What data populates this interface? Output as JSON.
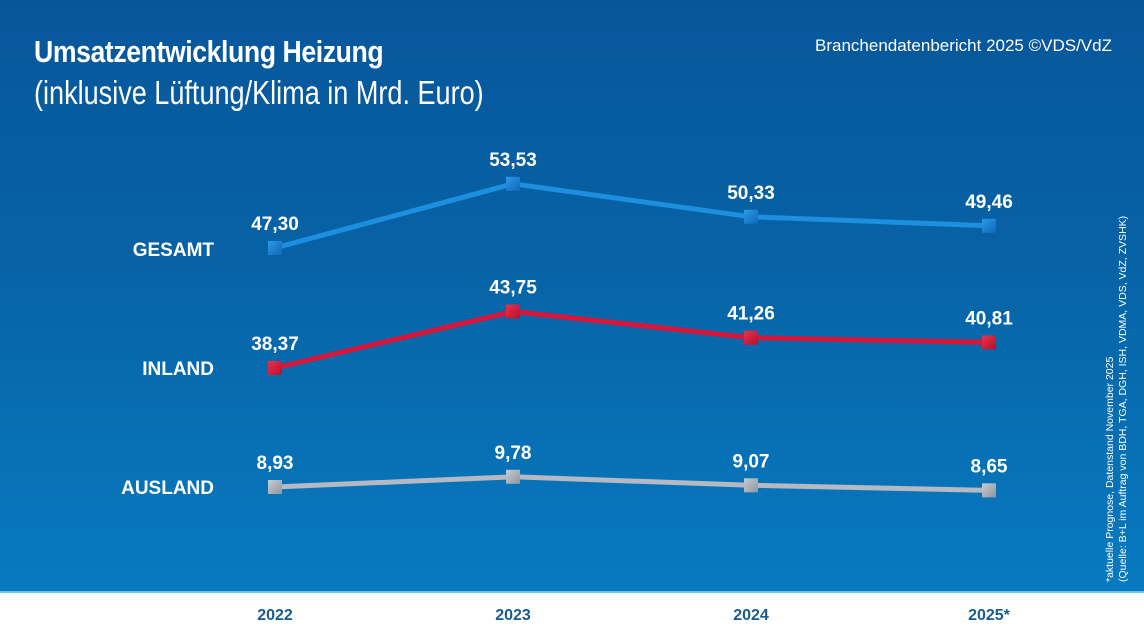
{
  "header": {
    "title": "Umsatzentwicklung Heizung",
    "subtitle": "(inklusive Lüftung/Klima in Mrd. Euro)",
    "source": "Branchendatenbericht 2025 ©VDS/VdZ"
  },
  "footnote": {
    "line1": "*aktuelle Prognose, Datenstand November 2025",
    "line2": "(Quelle: B+L im Auftrag von BDH, TGA, DGH, ISH, VDMA, VDS, VdZ, ZVSHK)"
  },
  "chart_data": {
    "type": "line",
    "title": "Umsatzentwicklung Heizung",
    "subtitle": "(inklusive Lüftung/Klima in Mrd. Euro)",
    "xlabel": "",
    "ylabel": "Mrd. Euro",
    "categories": [
      "2022",
      "2023",
      "2024",
      "2025*"
    ],
    "series": [
      {
        "name": "GESAMT",
        "color": "#1c8fe0",
        "values": [
          47.3,
          53.53,
          50.33,
          49.46
        ],
        "labels": [
          "47,30",
          "53,53",
          "50,33",
          "49,46"
        ]
      },
      {
        "name": "INLAND",
        "color": "#d8163a",
        "values": [
          38.37,
          43.75,
          41.26,
          40.81
        ],
        "labels": [
          "38,37",
          "43,75",
          "41,26",
          "40,81"
        ]
      },
      {
        "name": "AUSLAND",
        "color": "#b4b9c3",
        "values": [
          8.93,
          9.78,
          9.07,
          8.65
        ],
        "labels": [
          "8,93",
          "9,78",
          "9,07",
          "8,65"
        ]
      }
    ],
    "grid": false,
    "legend": "series names left of lines"
  }
}
